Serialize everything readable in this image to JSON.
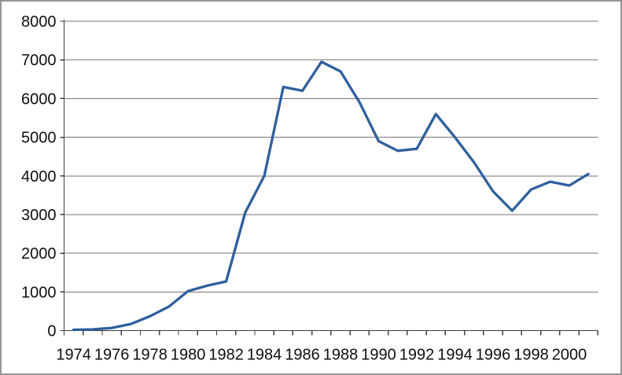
{
  "chart_data": {
    "type": "line",
    "title": "",
    "xlabel": "",
    "ylabel": "",
    "x": [
      1974,
      1975,
      1976,
      1977,
      1978,
      1979,
      1980,
      1981,
      1982,
      1983,
      1984,
      1985,
      1986,
      1987,
      1988,
      1989,
      1990,
      1991,
      1992,
      1993,
      1994,
      1995,
      1996,
      1997,
      1998,
      1999,
      2000,
      2001
    ],
    "values": [
      20,
      30,
      70,
      170,
      370,
      620,
      1020,
      1160,
      1270,
      3050,
      4000,
      6300,
      6200,
      6950,
      6700,
      5900,
      4900,
      4650,
      4700,
      5600,
      5000,
      4350,
      3600,
      3100,
      3650,
      3850,
      3750,
      4050
    ],
    "ylim": [
      0,
      8000
    ],
    "ytick_step": 1000,
    "y_axis_tick_labels": [
      "0",
      "1000",
      "2000",
      "3000",
      "4000",
      "5000",
      "6000",
      "7000",
      "8000"
    ],
    "x_axis_tick_labels": [
      "1974",
      "1976",
      "1978",
      "1980",
      "1982",
      "1984",
      "1986",
      "1988",
      "1990",
      "1992",
      "1994",
      "1996",
      "1998",
      "2000"
    ],
    "xtick_label_every": 2,
    "grid": true,
    "legend": "none"
  },
  "colors": {
    "line": "#2f5f9e",
    "gridline": "#757575",
    "axis": "#3f3f3f",
    "tick": "#3f3f3f",
    "label": "#0f0f0f",
    "background": "#ffffff",
    "border": "#969696"
  }
}
